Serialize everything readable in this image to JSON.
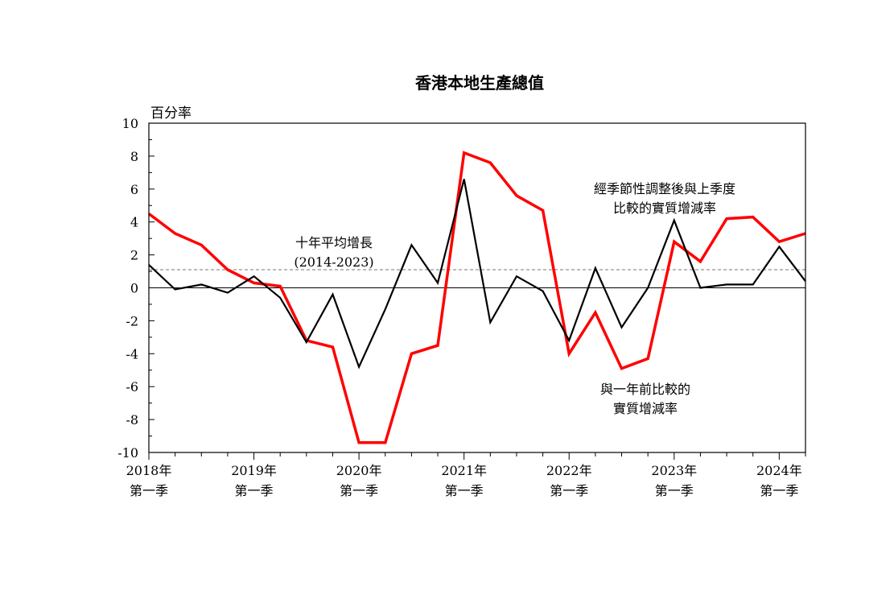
{
  "chart_data": {
    "type": "line",
    "title": "香港本地生產總值",
    "ylabel": "百分率",
    "ylim": [
      -10,
      10
    ],
    "yticks": [
      10,
      8,
      6,
      4,
      2,
      0,
      -2,
      -4,
      -6,
      -8,
      -10
    ],
    "quarters_count": 26,
    "x_labels": [
      {
        "index": 0,
        "year": "2018年",
        "quarter": "第一季"
      },
      {
        "index": 4,
        "year": "2019年",
        "quarter": "第一季"
      },
      {
        "index": 8,
        "year": "2020年",
        "quarter": "第一季"
      },
      {
        "index": 12,
        "year": "2021年",
        "quarter": "第一季"
      },
      {
        "index": 16,
        "year": "2022年",
        "quarter": "第一季"
      },
      {
        "index": 20,
        "year": "2023年",
        "quarter": "第一季"
      },
      {
        "index": 24,
        "year": "2024年",
        "quarter": "第一季"
      }
    ],
    "series": [
      {
        "name": "與一年前比較的實質增減率",
        "color": "#ff0000",
        "values": [
          4.5,
          3.3,
          2.6,
          1.1,
          0.3,
          0.1,
          -3.2,
          -3.6,
          -9.4,
          -9.4,
          -4.0,
          -3.5,
          8.2,
          7.6,
          5.6,
          4.7,
          -4.0,
          -1.5,
          -4.9,
          -4.3,
          2.8,
          1.6,
          4.2,
          4.3,
          2.8,
          3.3
        ]
      },
      {
        "name": "經季節性調整後與上季度比較的實質增減率",
        "color": "#000000",
        "values": [
          1.4,
          -0.1,
          0.2,
          -0.3,
          0.7,
          -0.6,
          -3.3,
          -0.4,
          -4.8,
          -1.3,
          2.6,
          0.3,
          6.6,
          -2.1,
          0.7,
          -0.2,
          -3.2,
          1.2,
          -2.4,
          0.0,
          4.1,
          0.0,
          0.2,
          0.2,
          2.5,
          0.4
        ]
      }
    ],
    "average_line": {
      "value": 1.1,
      "label_line1": "十年平均增長",
      "label_line2": "(2014-2023)"
    },
    "annotations": {
      "black_line1": "經季節性調整後與上季度",
      "black_line2": "比較的實質增減率",
      "red_line1": "與一年前比較的",
      "red_line2": "實質增減率"
    },
    "grid": false
  }
}
